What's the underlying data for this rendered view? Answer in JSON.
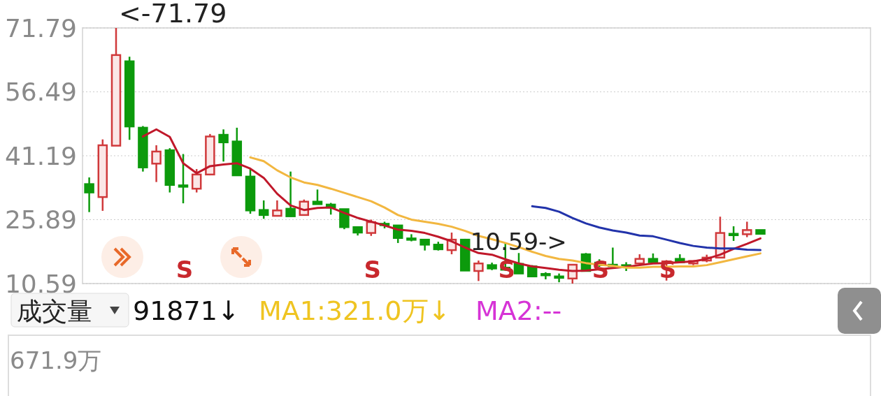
{
  "chart_data": [
    {
      "type": "candlestick",
      "categories": [
        null,
        null,
        null,
        null,
        null,
        null,
        null,
        null,
        null,
        null,
        null,
        null,
        null,
        null,
        null,
        null,
        null,
        null,
        null,
        null,
        null,
        null,
        null,
        null,
        null,
        null,
        null,
        null,
        null,
        null,
        null,
        null,
        null,
        null,
        null,
        null,
        null,
        null,
        null,
        null,
        null,
        null,
        null,
        null,
        null,
        null,
        null,
        null,
        null,
        null,
        null
      ],
      "ylim": [
        10.59,
        71.79
      ],
      "yticks": [
        10.59,
        25.89,
        41.19,
        56.49,
        71.79
      ],
      "tick_labels": "y",
      "grid": "y",
      "ohlc": [
        [
          34.4,
          36.0,
          27.7,
          32.4
        ],
        [
          31.3,
          45.1,
          28.0,
          43.7
        ],
        [
          43.6,
          71.79,
          43.6,
          65.3
        ],
        [
          63.8,
          64.9,
          45.0,
          48.2
        ],
        [
          47.9,
          48.3,
          37.4,
          38.4
        ],
        [
          39.3,
          43.7,
          34.9,
          42.2
        ],
        [
          42.5,
          43.0,
          32.4,
          34.2
        ],
        [
          34.1,
          41.6,
          29.8,
          33.8
        ],
        [
          33.3,
          38.0,
          32.4,
          36.7
        ],
        [
          36.7,
          46.4,
          36.5,
          45.8
        ],
        [
          46.2,
          47.5,
          39.8,
          44.4
        ],
        [
          44.6,
          47.9,
          36.5,
          36.5
        ],
        [
          36.2,
          38.0,
          27.3,
          28.1
        ],
        [
          28.2,
          30.5,
          26.1,
          27.0
        ],
        [
          26.8,
          30.5,
          26.8,
          28.1
        ],
        [
          28.5,
          37.4,
          26.6,
          26.7
        ],
        [
          27.0,
          30.7,
          27.0,
          30.2
        ],
        [
          30.2,
          33.1,
          29.5,
          29.6
        ],
        [
          29.5,
          29.9,
          27.1,
          28.8
        ],
        [
          28.4,
          28.4,
          23.6,
          24.1
        ],
        [
          24.1,
          24.1,
          22.1,
          22.8
        ],
        [
          22.7,
          25.9,
          22.0,
          25.3
        ],
        [
          24.9,
          25.4,
          23.8,
          24.8
        ],
        [
          24.5,
          24.5,
          20.3,
          21.5
        ],
        [
          21.4,
          22.4,
          20.7,
          21.1
        ],
        [
          21.1,
          21.1,
          18.5,
          19.9
        ],
        [
          19.9,
          20.6,
          18.5,
          18.8
        ],
        [
          18.6,
          22.8,
          17.6,
          21.1
        ],
        [
          21.1,
          21.3,
          13.7,
          13.7
        ],
        [
          13.6,
          16.1,
          11.2,
          15.4
        ],
        [
          15.0,
          15.6,
          13.8,
          14.2
        ],
        [
          14.4,
          20.4,
          13.7,
          13.9
        ],
        [
          15.3,
          17.9,
          13.0,
          13.0
        ],
        [
          14.7,
          15.0,
          12.2,
          12.3
        ],
        [
          12.9,
          13.3,
          11.6,
          12.8
        ],
        [
          12.3,
          13.0,
          10.9,
          12.2
        ],
        [
          11.8,
          15.1,
          10.59,
          15.1
        ],
        [
          17.6,
          17.9,
          13.6,
          13.6
        ],
        [
          15.6,
          16.4,
          14.6,
          15.0
        ],
        [
          15.1,
          19.2,
          14.9,
          15.0
        ],
        [
          15.0,
          15.7,
          13.6,
          14.8
        ],
        [
          15.4,
          17.6,
          15.1,
          16.5
        ],
        [
          16.5,
          17.8,
          15.7,
          15.7
        ],
        [
          15.6,
          16.2,
          11.3,
          15.9
        ],
        [
          16.5,
          17.6,
          15.7,
          15.7
        ],
        [
          15.4,
          16.1,
          15.0,
          16.0
        ],
        [
          16.1,
          17.5,
          15.7,
          16.8
        ],
        [
          16.8,
          26.6,
          16.8,
          22.7
        ],
        [
          22.5,
          24.3,
          20.8,
          22.4
        ],
        [
          22.4,
          25.4,
          21.7,
          23.4
        ],
        [
          23.4,
          23.4,
          22.5,
          22.5
        ]
      ],
      "colors": [
        "#0c9a0c",
        "#d0393b",
        "#d0393b",
        "#0c9a0c",
        "#0c9a0c",
        "#d0393b",
        "#0c9a0c",
        "#0c9a0c",
        "#d0393b",
        "#d0393b",
        "#0c9a0c",
        "#0c9a0c",
        "#0c9a0c",
        "#0c9a0c",
        "#d0393b",
        "#0c9a0c",
        "#d0393b",
        "#0c9a0c",
        "#0c9a0c",
        "#0c9a0c",
        "#0c9a0c",
        "#d0393b",
        "#0c9a0c",
        "#0c9a0c",
        "#0c9a0c",
        "#0c9a0c",
        "#0c9a0c",
        "#d0393b",
        "#0c9a0c",
        "#d0393b",
        "#0c9a0c",
        "#0c9a0c",
        "#0c9a0c",
        "#0c9a0c",
        "#0c9a0c",
        "#0c9a0c",
        "#d0393b",
        "#0c9a0c",
        "#0c9a0c",
        "#0c9a0c",
        "#0c9a0c",
        "#d0393b",
        "#0c9a0c",
        "#d0393b",
        "#0c9a0c",
        "#d0393b",
        "#d0393b",
        "#d0393b",
        "#0c9a0c",
        "#d0393b",
        "#0c9a0c"
      ],
      "series": [
        {
          "type": "line",
          "color": "#c0182a",
          "values": [
            null,
            null,
            null,
            null,
            45.8,
            47.5,
            45.7,
            39.4,
            37.0,
            38.7,
            39.1,
            39.4,
            38.1,
            35.9,
            32.1,
            29.3,
            28.2,
            28.7,
            28.8,
            27.5,
            26.3,
            25.4,
            24.5,
            23.5,
            23.2,
            22.7,
            21.8,
            20.7,
            19.2,
            17.9,
            17.5,
            16.4,
            15.4,
            14.7,
            14.3,
            13.9,
            13.6,
            13.7,
            14.0,
            14.3,
            14.6,
            15.0,
            15.4,
            15.5,
            15.7,
            15.9,
            16.5,
            17.5,
            18.9,
            20.1,
            21.4
          ]
        },
        {
          "type": "line",
          "color": "#f2b740",
          "values": [
            null,
            null,
            null,
            null,
            null,
            null,
            null,
            null,
            null,
            null,
            null,
            null,
            40.8,
            39.9,
            37.7,
            36.0,
            34.8,
            34.2,
            33.3,
            32.3,
            31.3,
            30.3,
            28.8,
            27.0,
            25.9,
            25.4,
            24.9,
            24.2,
            23.2,
            22.0,
            21.2,
            20.3,
            19.3,
            18.2,
            17.2,
            16.5,
            16.1,
            15.5,
            15.1,
            14.8,
            14.4,
            14.4,
            14.6,
            14.6,
            14.7,
            14.7,
            15.0,
            15.7,
            16.4,
            17.1,
            17.8
          ]
        },
        {
          "type": "line",
          "color": "#2233aa",
          "values": [
            null,
            null,
            null,
            null,
            null,
            null,
            null,
            null,
            null,
            null,
            null,
            null,
            null,
            null,
            null,
            null,
            null,
            null,
            null,
            null,
            null,
            null,
            null,
            null,
            null,
            null,
            null,
            null,
            null,
            null,
            null,
            null,
            null,
            29.1,
            28.7,
            27.8,
            26.3,
            25.0,
            24.0,
            23.3,
            22.8,
            22.1,
            21.9,
            21.1,
            20.3,
            19.6,
            19.2,
            19.0,
            19.0,
            18.7,
            18.6
          ]
        }
      ],
      "annotations": [
        "<-71.79",
        "10.59->",
        "S",
        "S",
        "S",
        "S",
        "S"
      ]
    },
    {
      "type": "other",
      "title": "成交量",
      "annotations": [
        "91871↓",
        "MA1:321.0万↓",
        "MA2:--",
        "671.9万"
      ]
    }
  ]
}
